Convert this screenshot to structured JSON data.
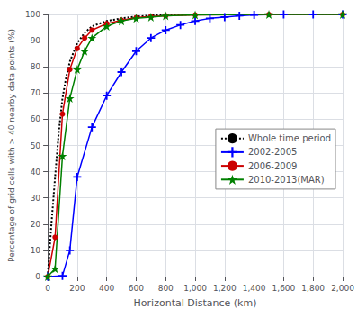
{
  "chart_data": {
    "type": "line",
    "xlabel": "Horizontal Distance (km)",
    "ylabel": "Percentage of grid cells with > 40 nearby data points (%)",
    "xlim": [
      0,
      2000
    ],
    "ylim": [
      0,
      100
    ],
    "xticks": [
      0,
      200,
      400,
      600,
      800,
      1000,
      1200,
      1400,
      1600,
      1800,
      2000
    ],
    "yticks": [
      0,
      10,
      20,
      30,
      40,
      50,
      60,
      70,
      80,
      90,
      100
    ],
    "grid": true,
    "legend": "right",
    "series": [
      {
        "name": "Whole time period",
        "color": "#000000",
        "line_style": "dotted",
        "marker": "none",
        "x": [
          0,
          25,
          50,
          75,
          100,
          125,
          150,
          200,
          250,
          300,
          400,
          500,
          600,
          700,
          800,
          1000,
          1500,
          2000
        ],
        "values": [
          0,
          20,
          38,
          55,
          68,
          76,
          82,
          89,
          93,
          95.5,
          97.5,
          98.5,
          99.2,
          99.6,
          99.8,
          100,
          100,
          100
        ]
      },
      {
        "name": "2002-2005",
        "color": "#0000FF",
        "line_style": "solid",
        "marker": "plus",
        "x": [
          0,
          100,
          150,
          200,
          300,
          400,
          500,
          600,
          700,
          800,
          900,
          1000,
          1100,
          1200,
          1300,
          1400,
          1600,
          1800,
          2000
        ],
        "values": [
          0,
          0.3,
          10,
          38,
          57,
          69,
          78,
          86,
          91,
          94,
          96,
          97.5,
          98.5,
          99,
          99.5,
          99.8,
          100,
          100,
          100
        ]
      },
      {
        "name": "2006-2009",
        "color": "#CC0000",
        "line_style": "solid",
        "marker": "circle",
        "x": [
          0,
          50,
          100,
          150,
          200,
          250,
          300,
          400,
          500,
          600,
          700,
          800,
          1000,
          1500,
          2000
        ],
        "values": [
          0,
          15,
          62,
          79,
          87,
          91,
          94,
          96.5,
          97.8,
          98.8,
          99.2,
          99.5,
          99.8,
          100,
          100
        ]
      },
      {
        "name": "2010-2013(MAR)",
        "color": "#008000",
        "line_style": "solid",
        "marker": "star",
        "x": [
          0,
          50,
          100,
          150,
          200,
          250,
          300,
          400,
          500,
          600,
          700,
          800,
          1000,
          1500,
          2000
        ],
        "values": [
          0,
          3,
          46,
          68,
          79,
          86,
          91,
          95.5,
          97.5,
          98.5,
          99,
          99.5,
          99.8,
          100,
          100
        ]
      }
    ]
  }
}
